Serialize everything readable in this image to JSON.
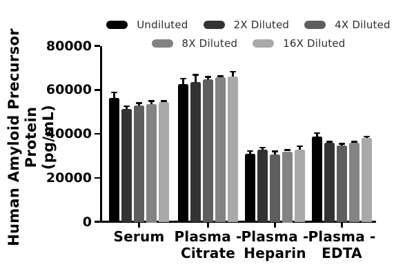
{
  "chart_data": {
    "type": "bar",
    "title": "",
    "ylabel_line1": "Human Amyloid Precursor Protein",
    "ylabel_line2": "(pg/mL)",
    "ylim": [
      0,
      80000
    ],
    "yticks": [
      0,
      20000,
      40000,
      60000,
      80000
    ],
    "ytick_labels": [
      "0",
      "20000",
      "40000",
      "60000",
      "80000"
    ],
    "grid": false,
    "legend_position": "top",
    "categories": [
      "Serum",
      "Plasma - Citrate",
      "Plasma - Heparin",
      "Plasma - EDTA"
    ],
    "category_label_lines": [
      [
        "Serum"
      ],
      [
        "Plasma -",
        "Citrate"
      ],
      [
        "Plasma -",
        "Heparin"
      ],
      [
        "Plasma -",
        "EDTA"
      ]
    ],
    "series": [
      {
        "name": "Undiluted",
        "color": "#000000",
        "values": [
          56400,
          62700,
          30800,
          38600
        ],
        "errors": [
          2500,
          2400,
          1400,
          1700
        ]
      },
      {
        "name": "2X Diluted",
        "color": "#333333",
        "values": [
          51300,
          63600,
          32800,
          35900
        ],
        "errors": [
          1300,
          3300,
          900,
          500
        ]
      },
      {
        "name": "4X Diluted",
        "color": "#5e5e5e",
        "values": [
          52900,
          64700,
          30600,
          34600
        ],
        "errors": [
          1100,
          1200,
          1400,
          800
        ]
      },
      {
        "name": "8X Diluted",
        "color": "#838383",
        "values": [
          53500,
          65700,
          32000,
          35900
        ],
        "errors": [
          1400,
          500,
          700,
          500
        ]
      },
      {
        "name": "16X Diluted",
        "color": "#a9a9a9",
        "values": [
          54300,
          65900,
          32800,
          38200
        ],
        "errors": [
          600,
          2400,
          1600,
          500
        ]
      }
    ],
    "legend_rows": [
      [
        "Undiluted",
        "2X Diluted",
        "4X Diluted"
      ],
      [
        "8X Diluted",
        "16X Diluted"
      ]
    ],
    "error_bar_color": "#000000",
    "axis_color": "#000000"
  }
}
